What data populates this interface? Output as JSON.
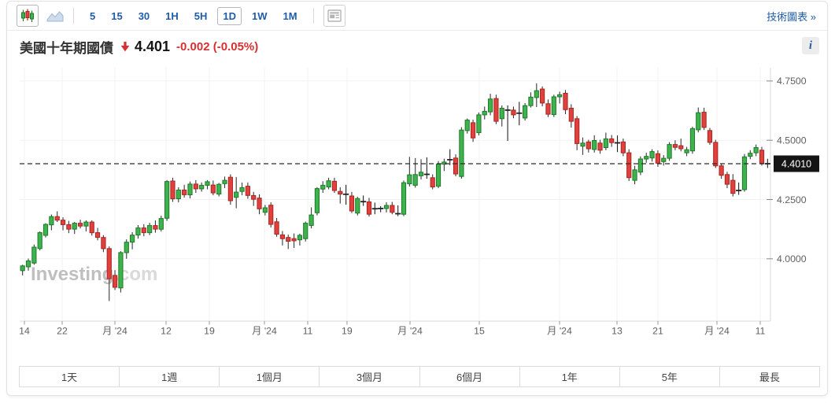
{
  "toolbar": {
    "chart_type_candlestick_icon": "candlestick-icon",
    "chart_type_area_icon": "area-chart-icon",
    "news_panel_icon": "news-panel-icon",
    "timeframes": [
      {
        "label": "5",
        "selected": false
      },
      {
        "label": "15",
        "selected": false
      },
      {
        "label": "30",
        "selected": false
      },
      {
        "label": "1H",
        "selected": false
      },
      {
        "label": "5H",
        "selected": false
      },
      {
        "label": "1D",
        "selected": true
      },
      {
        "label": "1W",
        "selected": false
      },
      {
        "label": "1M",
        "selected": false
      }
    ],
    "tech_chart_link": "技術圖表 »"
  },
  "header": {
    "title": "美國十年期國債",
    "direction_icon": "down-arrow-icon",
    "price": "4.401",
    "change": "-0.002 (-0.05%)",
    "info_label": "i"
  },
  "chart_data": {
    "type": "candlestick",
    "title": "美國十年期國債 daily candlestick chart",
    "y_domain": [
      3.737,
      4.806
    ],
    "grid": true,
    "y_ticks": [
      {
        "label": "4.7500",
        "value": 4.75
      },
      {
        "label": "4.5000",
        "value": 4.5
      },
      {
        "label": "4.2500",
        "value": 4.25
      },
      {
        "label": "4.0000",
        "value": 4.0
      }
    ],
    "x_ticks": [
      {
        "label": "14",
        "pos": 0.0063
      },
      {
        "label": "22",
        "pos": 0.0566
      },
      {
        "label": "月 '24",
        "pos": 0.1268
      },
      {
        "label": "12",
        "pos": 0.195
      },
      {
        "label": "19",
        "pos": 0.2526
      },
      {
        "label": "月 '24",
        "pos": 0.326
      },
      {
        "label": "11",
        "pos": 0.3836
      },
      {
        "label": "19",
        "pos": 0.436
      },
      {
        "label": "月 '24",
        "pos": 0.5199
      },
      {
        "label": "15",
        "pos": 0.6122
      },
      {
        "label": "月 '24",
        "pos": 0.7191
      },
      {
        "label": "13",
        "pos": 0.7956
      },
      {
        "label": "21",
        "pos": 0.8501
      },
      {
        "label": "月 '24",
        "pos": 0.9287
      },
      {
        "label": "11",
        "pos": 0.9864
      }
    ],
    "current_price": {
      "value": 4.401,
      "label": "4.4010"
    },
    "colors": {
      "up": "#3eb24c",
      "up_border": "#1d7a28",
      "down": "#e0403e",
      "down_border": "#a8261f",
      "wick": "#3a3a3a",
      "doji": "#222222",
      "grid": "#f2f2f2",
      "axis": "#d9d9d9",
      "tick_text": "#5f5f5f",
      "current_line": "#2b2b2b",
      "badge_bg": "#141414",
      "badge_text": "#ffffff"
    },
    "watermark": {
      "text1": "Investing",
      "dot": ".",
      "text2": "com",
      "color1": "#bfbfbf",
      "dot_color": "#e0463a",
      "color2": "#d9d9d9"
    },
    "candles": [
      [
        3.95,
        3.975,
        3.93,
        3.97
      ],
      [
        3.966,
        4.001,
        3.95,
        3.991
      ],
      [
        3.982,
        4.06,
        3.975,
        4.049
      ],
      [
        4.043,
        4.115,
        4.035,
        4.11
      ],
      [
        4.099,
        4.15,
        4.09,
        4.145
      ],
      [
        4.143,
        4.187,
        4.12,
        4.178
      ],
      [
        4.178,
        4.2,
        4.155,
        4.163
      ],
      [
        4.163,
        4.175,
        4.12,
        4.144
      ],
      [
        4.144,
        4.16,
        4.108,
        4.125
      ],
      [
        4.125,
        4.155,
        4.105,
        4.15
      ],
      [
        4.15,
        4.165,
        4.128,
        4.138
      ],
      [
        4.138,
        4.162,
        4.115,
        4.155
      ],
      [
        4.155,
        4.162,
        4.098,
        4.11
      ],
      [
        4.11,
        4.13,
        4.078,
        4.09
      ],
      [
        4.09,
        4.1,
        4.028,
        4.043
      ],
      [
        4.043,
        4.052,
        3.822,
        3.916
      ],
      [
        3.93,
        3.952,
        3.868,
        3.88
      ],
      [
        3.877,
        4.032,
        3.858,
        4.026
      ],
      [
        4.026,
        4.082,
        4.0,
        4.07
      ],
      [
        4.07,
        4.112,
        4.04,
        4.1
      ],
      [
        4.1,
        4.142,
        4.085,
        4.13
      ],
      [
        4.13,
        4.146,
        4.095,
        4.11
      ],
      [
        4.11,
        4.152,
        4.1,
        4.14
      ],
      [
        4.14,
        4.162,
        4.11,
        4.125
      ],
      [
        4.125,
        4.182,
        4.115,
        4.17
      ],
      [
        4.171,
        4.332,
        4.16,
        4.326
      ],
      [
        4.328,
        4.342,
        4.24,
        4.253
      ],
      [
        4.253,
        4.302,
        4.238,
        4.29
      ],
      [
        4.29,
        4.312,
        4.258,
        4.27
      ],
      [
        4.27,
        4.326,
        4.255,
        4.315
      ],
      [
        4.315,
        4.332,
        4.278,
        4.295
      ],
      [
        4.295,
        4.322,
        4.283,
        4.31
      ],
      [
        4.31,
        4.332,
        4.293,
        4.325
      ],
      [
        4.311,
        4.33,
        4.268,
        4.278
      ],
      [
        4.273,
        4.32,
        4.263,
        4.314
      ],
      [
        4.317,
        4.347,
        4.298,
        4.331
      ],
      [
        4.344,
        4.356,
        4.228,
        4.245
      ],
      [
        4.259,
        4.345,
        4.213,
        4.281
      ],
      [
        4.284,
        4.322,
        4.268,
        4.3
      ],
      [
        4.306,
        4.322,
        4.253,
        4.267
      ],
      [
        4.267,
        4.282,
        4.223,
        4.251
      ],
      [
        4.256,
        4.272,
        4.188,
        4.211
      ],
      [
        4.196,
        4.227,
        4.183,
        4.215
      ],
      [
        4.226,
        4.238,
        4.132,
        4.145
      ],
      [
        4.156,
        4.172,
        4.093,
        4.104
      ],
      [
        4.101,
        4.117,
        4.056,
        4.085
      ],
      [
        4.09,
        4.102,
        4.041,
        4.074
      ],
      [
        4.085,
        4.107,
        4.046,
        4.076
      ],
      [
        4.08,
        4.106,
        4.056,
        4.099
      ],
      [
        4.085,
        4.157,
        4.073,
        4.15
      ],
      [
        4.141,
        4.217,
        4.128,
        4.185
      ],
      [
        4.194,
        4.302,
        4.183,
        4.296
      ],
      [
        4.294,
        4.327,
        4.278,
        4.31
      ],
      [
        4.303,
        4.342,
        4.293,
        4.329
      ],
      [
        4.327,
        4.342,
        4.278,
        4.288
      ],
      [
        4.284,
        4.302,
        4.233,
        4.273
      ],
      [
        4.271,
        4.312,
        4.228,
        4.272
      ],
      [
        4.265,
        4.282,
        4.193,
        4.202
      ],
      [
        4.193,
        4.262,
        4.183,
        4.254
      ],
      [
        4.24,
        4.267,
        4.223,
        4.241
      ],
      [
        4.24,
        4.257,
        4.178,
        4.188
      ],
      [
        4.21,
        4.237,
        4.188,
        4.211
      ],
      [
        4.21,
        4.222,
        4.196,
        4.212
      ],
      [
        4.212,
        4.238,
        4.195,
        4.225
      ],
      [
        4.225,
        4.24,
        4.188,
        4.196
      ],
      [
        4.196,
        4.225,
        4.18,
        4.19
      ],
      [
        4.188,
        4.33,
        4.18,
        4.321
      ],
      [
        4.316,
        4.43,
        4.305,
        4.354
      ],
      [
        4.31,
        4.425,
        4.3,
        4.355
      ],
      [
        4.35,
        4.42,
        4.335,
        4.365
      ],
      [
        4.354,
        4.428,
        4.338,
        4.356
      ],
      [
        4.342,
        4.356,
        4.293,
        4.303
      ],
      [
        4.306,
        4.412,
        4.298,
        4.399
      ],
      [
        4.399,
        4.422,
        4.37,
        4.408
      ],
      [
        4.415,
        4.462,
        4.395,
        4.418
      ],
      [
        4.425,
        4.44,
        4.348,
        4.358
      ],
      [
        4.347,
        4.555,
        4.338,
        4.543
      ],
      [
        4.541,
        4.592,
        4.528,
        4.585
      ],
      [
        4.574,
        4.587,
        4.493,
        4.51
      ],
      [
        4.532,
        4.617,
        4.52,
        4.607
      ],
      [
        4.607,
        4.642,
        4.588,
        4.622
      ],
      [
        4.62,
        4.696,
        4.605,
        4.674
      ],
      [
        4.676,
        4.692,
        4.568,
        4.58
      ],
      [
        4.591,
        4.647,
        4.558,
        4.635
      ],
      [
        4.627,
        4.647,
        4.497,
        4.627
      ],
      [
        4.627,
        4.642,
        4.593,
        4.607
      ],
      [
        4.613,
        4.662,
        4.563,
        4.614
      ],
      [
        4.594,
        4.657,
        4.583,
        4.646
      ],
      [
        4.646,
        4.702,
        4.638,
        4.682
      ],
      [
        4.68,
        4.74,
        4.64,
        4.709
      ],
      [
        4.716,
        4.727,
        4.643,
        4.657
      ],
      [
        4.654,
        4.672,
        4.598,
        4.61
      ],
      [
        4.608,
        4.692,
        4.598,
        4.683
      ],
      [
        4.683,
        4.705,
        4.655,
        4.692
      ],
      [
        4.698,
        4.712,
        4.61,
        4.629
      ],
      [
        4.635,
        4.652,
        4.553,
        4.58
      ],
      [
        4.591,
        4.602,
        4.458,
        4.486
      ],
      [
        4.475,
        4.512,
        4.438,
        4.488
      ],
      [
        4.493,
        4.502,
        4.448,
        4.464
      ],
      [
        4.461,
        4.521,
        4.448,
        4.499
      ],
      [
        4.488,
        4.502,
        4.443,
        4.458
      ],
      [
        4.469,
        4.532,
        4.458,
        4.506
      ],
      [
        4.506,
        4.522,
        4.472,
        4.49
      ],
      [
        4.489,
        4.52,
        4.45,
        4.489
      ],
      [
        4.493,
        4.507,
        4.433,
        4.447
      ],
      [
        4.447,
        4.462,
        4.328,
        4.342
      ],
      [
        4.331,
        4.392,
        4.314,
        4.375
      ],
      [
        4.366,
        4.432,
        4.353,
        4.421
      ],
      [
        4.421,
        4.447,
        4.405,
        4.432
      ],
      [
        4.425,
        4.462,
        4.41,
        4.452
      ],
      [
        4.443,
        4.457,
        4.388,
        4.403
      ],
      [
        4.41,
        4.437,
        4.393,
        4.424
      ],
      [
        4.424,
        4.492,
        4.413,
        4.482
      ],
      [
        4.482,
        4.5,
        4.458,
        4.47
      ],
      [
        4.477,
        4.507,
        4.453,
        4.464
      ],
      [
        4.447,
        4.472,
        4.433,
        4.46
      ],
      [
        4.455,
        4.557,
        4.443,
        4.549
      ],
      [
        4.544,
        4.638,
        4.533,
        4.616
      ],
      [
        4.618,
        4.637,
        4.543,
        4.554
      ],
      [
        4.541,
        4.552,
        4.481,
        4.491
      ],
      [
        4.491,
        4.502,
        4.383,
        4.392
      ],
      [
        4.392,
        4.402,
        4.338,
        4.352
      ],
      [
        4.355,
        4.367,
        4.298,
        4.314
      ],
      [
        4.331,
        4.357,
        4.263,
        4.276
      ],
      [
        4.287,
        4.322,
        4.27,
        4.288
      ],
      [
        4.292,
        4.442,
        4.283,
        4.43
      ],
      [
        4.432,
        4.458,
        4.42,
        4.445
      ],
      [
        4.447,
        4.482,
        4.433,
        4.469
      ],
      [
        4.458,
        4.472,
        4.393,
        4.403
      ],
      [
        4.403,
        4.422,
        4.383,
        4.401
      ]
    ]
  },
  "range_buttons": [
    "1天",
    "1週",
    "1個月",
    "3個月",
    "6個月",
    "1年",
    "5年",
    "最長"
  ]
}
